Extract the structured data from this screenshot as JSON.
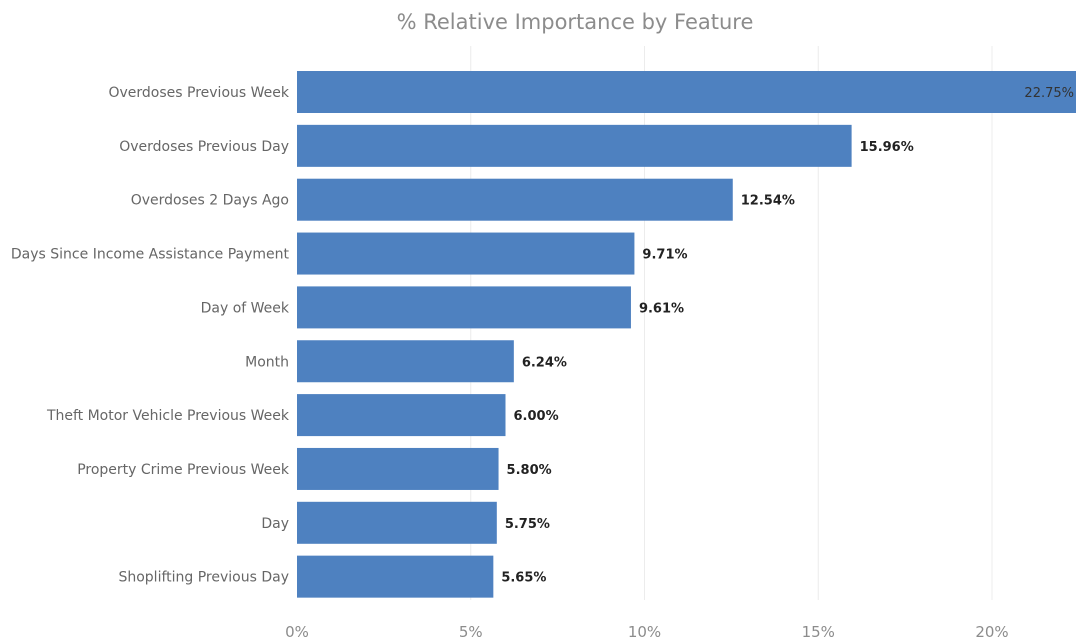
{
  "chart_data": {
    "type": "bar",
    "orientation": "horizontal",
    "title": "% Relative Importance by Feature",
    "categories": [
      "Overdoses Previous Week",
      "Overdoses Previous Day",
      "Overdoses 2 Days Ago",
      "Days Since Income Assistance Payment",
      "Day of Week",
      "Month",
      "Theft Motor Vehicle Previous Week",
      "Property Crime Previous Week",
      "Day",
      "Shoplifting Previous Day"
    ],
    "values": [
      22.75,
      15.96,
      12.54,
      9.71,
      9.61,
      6.24,
      6.0,
      5.8,
      5.75,
      5.65
    ],
    "data_labels": [
      "22.75%",
      "15.96%",
      "12.54%",
      "9.71%",
      "9.61%",
      "6.24%",
      "6.00%",
      "5.80%",
      "5.75%",
      "5.65%"
    ],
    "xticks": [
      0,
      5,
      10,
      15,
      20
    ],
    "xtick_labels": [
      "0%",
      "5%",
      "10%",
      "15%",
      "20%"
    ],
    "xlim": [
      0,
      22.75
    ],
    "xlabel": "",
    "ylabel": "",
    "grid": "vertical",
    "legend": "none",
    "bar_color": "#4e81c0"
  }
}
